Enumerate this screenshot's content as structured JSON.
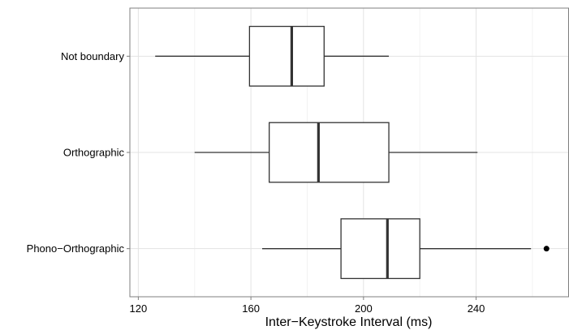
{
  "chart_data": {
    "type": "boxplot",
    "orientation": "horizontal",
    "title": "",
    "xlabel": "Inter−Keystroke Interval (ms)",
    "ylabel": "",
    "xlim": [
      117,
      273
    ],
    "x_ticks": [
      120,
      160,
      200,
      240
    ],
    "x_tick_labels": [
      "120",
      "160",
      "200",
      "240"
    ],
    "grid": true,
    "colors": {
      "box_fill": "#ffffff",
      "box_stroke": "#333333",
      "grid_major": "#e3e3e3",
      "grid_minor": "#f2f2f2",
      "outlier": "#000000"
    },
    "categories": [
      "Not boundary",
      "Orthographic",
      "Phono−Orthographic"
    ],
    "boxes": [
      {
        "category": "Not boundary",
        "whisker_low": 126,
        "q1": 159.5,
        "median": 174.5,
        "q3": 186,
        "whisker_high": 209,
        "outliers": []
      },
      {
        "category": "Orthographic",
        "whisker_low": 140,
        "q1": 166.5,
        "median": 184,
        "q3": 209,
        "whisker_high": 240.5,
        "outliers": []
      },
      {
        "category": "Phono−Orthographic",
        "whisker_low": 164,
        "q1": 192,
        "median": 208.5,
        "q3": 220,
        "whisker_high": 259.5,
        "outliers": [
          265
        ]
      }
    ]
  }
}
